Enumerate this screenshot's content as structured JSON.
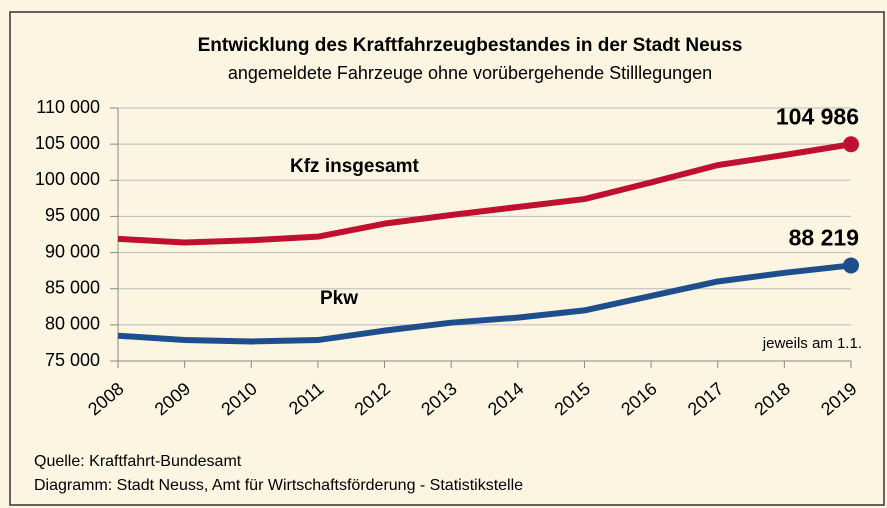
{
  "chart_data": {
    "type": "line",
    "title": "Entwicklung des Kraftfahrzeugbestandes in der Stadt Neuss",
    "subtitle": "angemeldete Fahrzeuge ohne vorübergehende Stilllegungen",
    "annotation": "jeweils am 1.1.",
    "source": "Quelle: Kraftfahrt-Bundesamt",
    "credit": "Diagramm: Stadt Neuss, Amt für Wirtschaftsförderung - Statistikstelle",
    "categories": [
      "2008",
      "2009",
      "2010",
      "2011",
      "2012",
      "2013",
      "2014",
      "2015",
      "2016",
      "2017",
      "2018",
      "2019"
    ],
    "series": [
      {
        "name": "Kfz insgesamt",
        "color": "#c0102f",
        "values": [
          91900,
          91400,
          91700,
          92200,
          94000,
          95200,
          96300,
          97400,
          99700,
          102100,
          103500,
          104986
        ],
        "value_labels": [
          null,
          null,
          null,
          null,
          null,
          null,
          null,
          null,
          null,
          null,
          null,
          "104 986"
        ]
      },
      {
        "name": "Pkw",
        "color": "#1f4e8c",
        "values": [
          78500,
          77900,
          77700,
          77900,
          79200,
          80300,
          81000,
          82000,
          84000,
          86000,
          87200,
          88219
        ],
        "value_labels": [
          null,
          null,
          null,
          null,
          null,
          null,
          null,
          null,
          null,
          null,
          null,
          "88 219"
        ]
      }
    ],
    "ylim": [
      75000,
      110000
    ],
    "yticks": [
      {
        "value": 75000,
        "label": "75 000"
      },
      {
        "value": 80000,
        "label": "80 000"
      },
      {
        "value": 85000,
        "label": "85 000"
      },
      {
        "value": 90000,
        "label": "90 000"
      },
      {
        "value": 95000,
        "label": "95 000"
      },
      {
        "value": 100000,
        "label": "100 000"
      },
      {
        "value": 105000,
        "label": "105 000"
      },
      {
        "value": 110000,
        "label": "110 000"
      }
    ],
    "grid": true
  }
}
